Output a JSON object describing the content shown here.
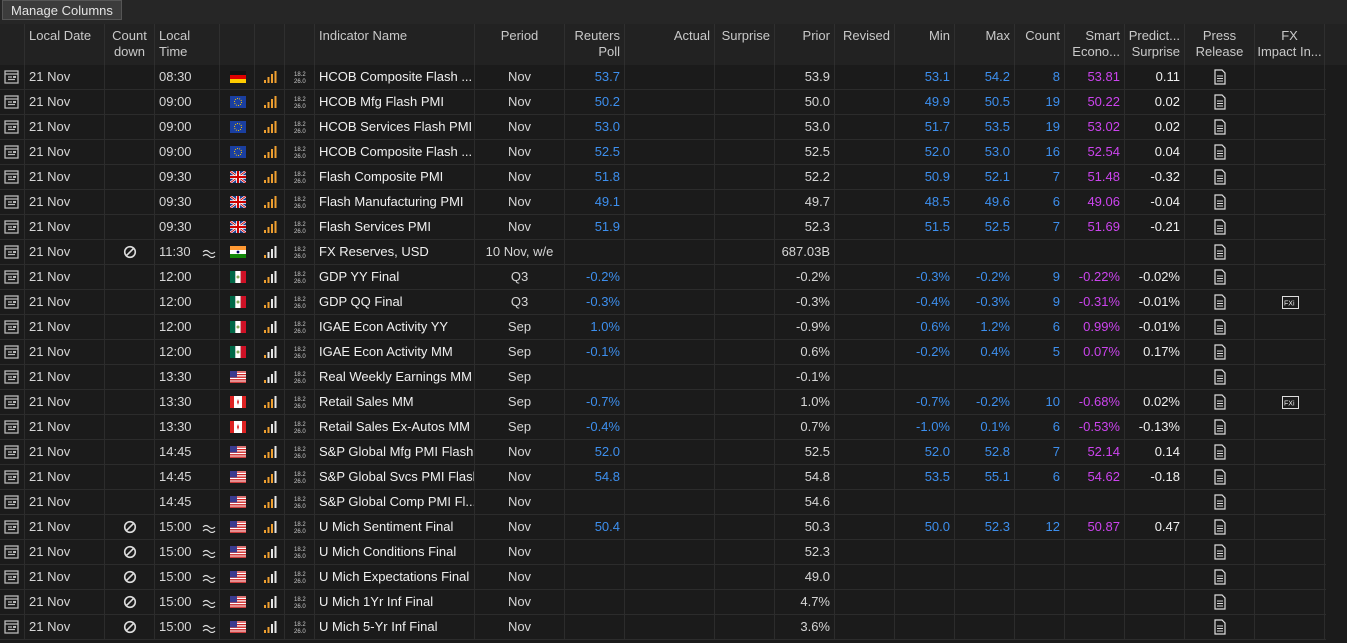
{
  "toolbar": {
    "button": "Manage Columns"
  },
  "table": {
    "header": {
      "date": [
        "Local Date"
      ],
      "countdown": [
        "Count",
        "down"
      ],
      "time": [
        "Local",
        "Time"
      ],
      "name": [
        "Indicator Name"
      ],
      "period": [
        "Period"
      ],
      "poll": [
        "Reuters",
        "Poll"
      ],
      "actual": [
        "Actual"
      ],
      "surprise": [
        "Surprise"
      ],
      "prior": [
        "Prior"
      ],
      "revised": [
        "Revised"
      ],
      "min": [
        "Min"
      ],
      "max": [
        "Max"
      ],
      "count": [
        "Count"
      ],
      "smart": [
        "Smart",
        "Econo..."
      ],
      "pred": [
        "Predict...",
        "Surprise"
      ],
      "press": [
        "Press",
        "Release"
      ],
      "fx": [
        "FX",
        "Impact In..."
      ]
    },
    "rows": [
      {
        "date": "21 Nov",
        "time": "08:30",
        "flag": "de",
        "importance": 4,
        "name": "HCOB Composite Flash ...",
        "period": "Nov",
        "poll": "53.7",
        "prior": "53.9",
        "min": "53.1",
        "max": "54.2",
        "count": "8",
        "smart": "53.81",
        "pred": "0.11"
      },
      {
        "date": "21 Nov",
        "time": "09:00",
        "flag": "eu",
        "importance": 4,
        "name": "HCOB Mfg Flash PMI",
        "period": "Nov",
        "poll": "50.2",
        "prior": "50.0",
        "min": "49.9",
        "max": "50.5",
        "count": "19",
        "smart": "50.22",
        "pred": "0.02"
      },
      {
        "date": "21 Nov",
        "time": "09:00",
        "flag": "eu",
        "importance": 4,
        "name": "HCOB Services Flash PMI",
        "period": "Nov",
        "poll": "53.0",
        "prior": "53.0",
        "min": "51.7",
        "max": "53.5",
        "count": "19",
        "smart": "53.02",
        "pred": "0.02"
      },
      {
        "date": "21 Nov",
        "time": "09:00",
        "flag": "eu",
        "importance": 4,
        "name": "HCOB Composite Flash ...",
        "period": "Nov",
        "poll": "52.5",
        "prior": "52.5",
        "min": "52.0",
        "max": "53.0",
        "count": "16",
        "smart": "52.54",
        "pred": "0.04"
      },
      {
        "date": "21 Nov",
        "time": "09:30",
        "flag": "gb",
        "importance": 4,
        "name": "Flash Composite PMI",
        "period": "Nov",
        "poll": "51.8",
        "prior": "52.2",
        "min": "50.9",
        "max": "52.1",
        "count": "7",
        "smart": "51.48",
        "pred": "-0.32"
      },
      {
        "date": "21 Nov",
        "time": "09:30",
        "flag": "gb",
        "importance": 4,
        "name": "Flash Manufacturing PMI",
        "period": "Nov",
        "poll": "49.1",
        "prior": "49.7",
        "min": "48.5",
        "max": "49.6",
        "count": "6",
        "smart": "49.06",
        "pred": "-0.04"
      },
      {
        "date": "21 Nov",
        "time": "09:30",
        "flag": "gb",
        "importance": 4,
        "name": "Flash Services PMI",
        "period": "Nov",
        "poll": "51.9",
        "prior": "52.3",
        "min": "51.5",
        "max": "52.5",
        "count": "7",
        "smart": "51.69",
        "pred": "-0.21"
      },
      {
        "date": "21 Nov",
        "countdown": true,
        "time": "11:30",
        "approx": true,
        "flag": "in",
        "importance": 1,
        "name": "FX Reserves, USD",
        "period": "10 Nov, w/e",
        "prior": "687.03B"
      },
      {
        "date": "21 Nov",
        "time": "12:00",
        "flag": "mx",
        "importance": 2,
        "name": "GDP YY Final",
        "period": "Q3",
        "poll": "-0.2%",
        "prior": "-0.2%",
        "min": "-0.3%",
        "max": "-0.2%",
        "count": "9",
        "smart": "-0.22%",
        "pred": "-0.02%"
      },
      {
        "date": "21 Nov",
        "time": "12:00",
        "flag": "mx",
        "importance": 2,
        "name": "GDP QQ Final",
        "period": "Q3",
        "poll": "-0.3%",
        "prior": "-0.3%",
        "min": "-0.4%",
        "max": "-0.3%",
        "count": "9",
        "smart": "-0.31%",
        "pred": "-0.01%",
        "fx_impact": true
      },
      {
        "date": "21 Nov",
        "time": "12:00",
        "flag": "mx",
        "importance": 2,
        "name": "IGAE Econ Activity YY",
        "period": "Sep",
        "poll": "1.0%",
        "prior": "-0.9%",
        "min": "0.6%",
        "max": "1.2%",
        "count": "6",
        "smart": "0.99%",
        "pred": "-0.01%"
      },
      {
        "date": "21 Nov",
        "time": "12:00",
        "flag": "mx",
        "importance": 1,
        "name": "IGAE Econ Activity MM",
        "period": "Sep",
        "poll": "-0.1%",
        "prior": "0.6%",
        "min": "-0.2%",
        "max": "0.4%",
        "count": "5",
        "smart": "0.07%",
        "pred": "0.17%"
      },
      {
        "date": "21 Nov",
        "time": "13:30",
        "flag": "us",
        "importance": 1,
        "name": "Real Weekly Earnings MM",
        "period": "Sep",
        "prior": "-0.1%"
      },
      {
        "date": "21 Nov",
        "time": "13:30",
        "flag": "ca",
        "importance": 3,
        "name": "Retail Sales MM",
        "period": "Sep",
        "poll": "-0.7%",
        "prior": "1.0%",
        "min": "-0.7%",
        "max": "-0.2%",
        "count": "10",
        "smart": "-0.68%",
        "pred": "0.02%",
        "fx_impact": true
      },
      {
        "date": "21 Nov",
        "time": "13:30",
        "flag": "ca",
        "importance": 2,
        "name": "Retail Sales Ex-Autos MM",
        "period": "Sep",
        "poll": "-0.4%",
        "prior": "0.7%",
        "min": "-1.0%",
        "max": "0.1%",
        "count": "6",
        "smart": "-0.53%",
        "pred": "-0.13%"
      },
      {
        "date": "21 Nov",
        "time": "14:45",
        "flag": "us",
        "importance": 3,
        "name": "S&P Global Mfg PMI Flash",
        "period": "Nov",
        "poll": "52.0",
        "prior": "52.5",
        "min": "52.0",
        "max": "52.8",
        "count": "7",
        "smart": "52.14",
        "pred": "0.14"
      },
      {
        "date": "21 Nov",
        "time": "14:45",
        "flag": "us",
        "importance": 3,
        "name": "S&P Global Svcs PMI Flash",
        "period": "Nov",
        "poll": "54.8",
        "prior": "54.8",
        "min": "53.5",
        "max": "55.1",
        "count": "6",
        "smart": "54.62",
        "pred": "-0.18"
      },
      {
        "date": "21 Nov",
        "time": "14:45",
        "flag": "us",
        "importance": 3,
        "name": "S&P Global Comp PMI Fl...",
        "period": "Nov",
        "prior": "54.6"
      },
      {
        "date": "21 Nov",
        "countdown": true,
        "time": "15:00",
        "approx": true,
        "flag": "us",
        "importance": 3,
        "name": "U Mich Sentiment Final",
        "period": "Nov",
        "poll": "50.4",
        "prior": "50.3",
        "min": "50.0",
        "max": "52.3",
        "count": "12",
        "smart": "50.87",
        "pred": "0.47"
      },
      {
        "date": "21 Nov",
        "countdown": true,
        "time": "15:00",
        "approx": true,
        "flag": "us",
        "importance": 2,
        "name": "U Mich Conditions Final",
        "period": "Nov",
        "prior": "52.3"
      },
      {
        "date": "21 Nov",
        "countdown": true,
        "time": "15:00",
        "approx": true,
        "flag": "us",
        "importance": 2,
        "name": "U Mich Expectations Final",
        "period": "Nov",
        "prior": "49.0"
      },
      {
        "date": "21 Nov",
        "countdown": true,
        "time": "15:00",
        "approx": true,
        "flag": "us",
        "importance": 2,
        "name": "U Mich 1Yr Inf Final",
        "period": "Nov",
        "prior": "4.7%"
      },
      {
        "date": "21 Nov",
        "countdown": true,
        "time": "15:00",
        "approx": true,
        "flag": "us",
        "importance": 2,
        "name": "U Mich 5-Yr Inf Final",
        "period": "Nov",
        "prior": "3.6%"
      }
    ]
  }
}
